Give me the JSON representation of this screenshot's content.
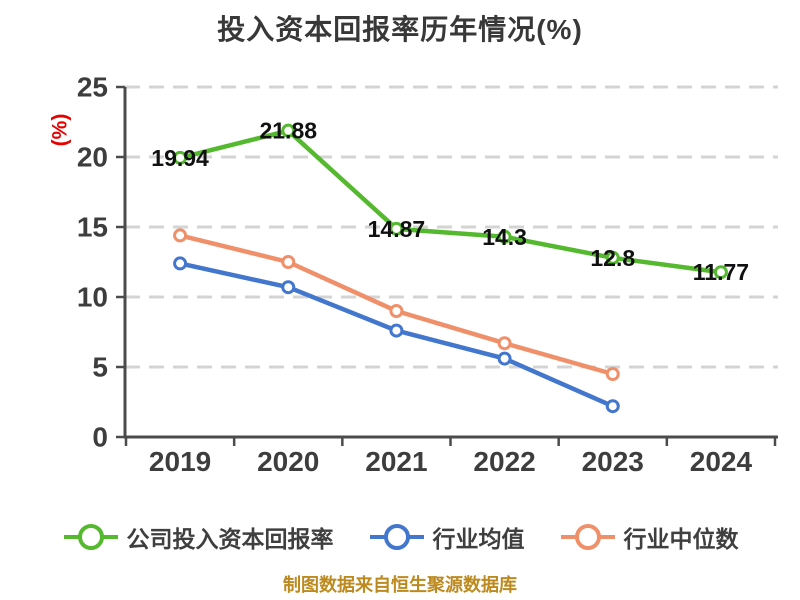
{
  "chart_data": {
    "type": "line",
    "title": "投入资本回报率历年情况(%)",
    "ylabel": "(%)",
    "footer": "制图数据来自恒生聚源数据库",
    "x_labels": [
      "2019",
      "2020",
      "2021",
      "2022",
      "2023",
      "2024"
    ],
    "ylim": [
      0,
      25
    ],
    "yticks": [
      0,
      5,
      10,
      15,
      20,
      25
    ],
    "grid": "horizontal-dashed",
    "legend_position": "bottom",
    "series": [
      {
        "key": "company-roic",
        "name": "公司投入资本回报率",
        "color": "#55b92f",
        "values": [
          19.94,
          21.88,
          14.87,
          14.3,
          12.8,
          11.77
        ],
        "point_labels": [
          "19.94",
          "21.88",
          "14.87",
          "14.3",
          "12.8",
          "11.77"
        ]
      },
      {
        "key": "industry-mean",
        "name": "行业均值",
        "color": "#4377cd",
        "values": [
          12.4,
          10.7,
          7.6,
          5.6,
          2.2,
          null
        ],
        "point_labels": []
      },
      {
        "key": "industry-median",
        "name": "行业中位数",
        "color": "#f0906a",
        "values": [
          14.4,
          12.5,
          9.0,
          6.7,
          4.5,
          null
        ],
        "point_labels": []
      }
    ],
    "colors": {
      "axis": "#4b4b4b",
      "grid": "#d4d4d4",
      "tick_text": "#3d3d3d",
      "title_text": "#383838",
      "ylabel_text": "#e60000",
      "point_label_text": "#111111",
      "footer_text": "#bd8a1f"
    }
  }
}
